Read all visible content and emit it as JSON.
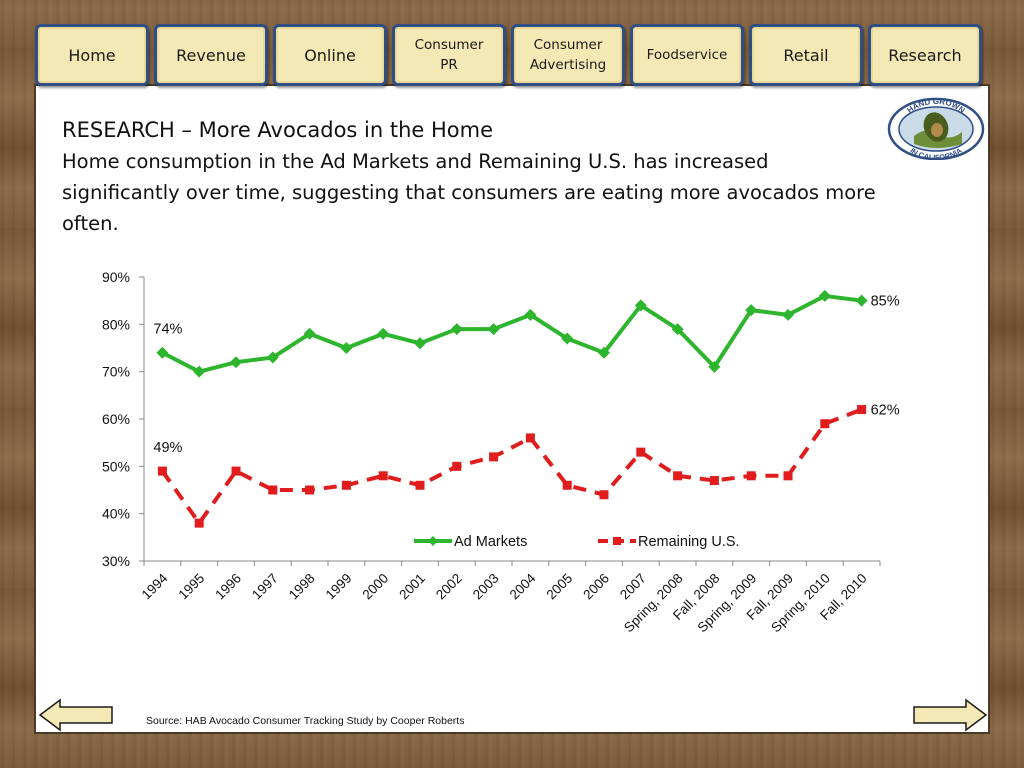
{
  "nav": {
    "tabs": [
      {
        "id": "home",
        "label": "Home"
      },
      {
        "id": "revenue",
        "label": "Revenue"
      },
      {
        "id": "online",
        "label": "Online"
      },
      {
        "id": "consumer-pr",
        "label": "Consumer\nPR"
      },
      {
        "id": "consumer-advertising",
        "label": "Consumer\nAdvertising"
      },
      {
        "id": "foodservice",
        "label": "Foodservice"
      },
      {
        "id": "retail",
        "label": "Retail"
      },
      {
        "id": "research",
        "label": "Research"
      }
    ]
  },
  "header": {
    "title": "RESEARCH –  More Avocados in the Home",
    "description": "Home consumption in the Ad Markets and Remaining U.S. has increased significantly over time, suggesting that consumers are eating more avocados more often."
  },
  "logo": {
    "top_text": "HAND GROWN",
    "bottom_text": "IN CALIFORNIA",
    "colors": {
      "ring": "#2f4e84",
      "fill": "#c9dbe6",
      "avocado": "#4a5d1e",
      "pit": "#b08b4c"
    }
  },
  "chart_data": {
    "type": "line",
    "categories": [
      "1994",
      "1995",
      "1996",
      "1997",
      "1998",
      "1999",
      "2000",
      "2001",
      "2002",
      "2003",
      "2004",
      "2005",
      "2006",
      "2007",
      "Spring, 2008",
      "Fall, 2008",
      "Spring, 2009",
      "Fall, 2009",
      "Spring, 2010",
      "Fall, 2010"
    ],
    "series": [
      {
        "name": "Ad Markets",
        "color": "#2db52d",
        "marker": "diamond",
        "style": "solid",
        "values": [
          74,
          70,
          72,
          73,
          78,
          75,
          78,
          76,
          79,
          79,
          82,
          77,
          74,
          84,
          79,
          71,
          83,
          82,
          86,
          85
        ]
      },
      {
        "name": "Remaining U.S.",
        "color": "#e01c1c",
        "marker": "square",
        "style": "dashed",
        "values": [
          49,
          38,
          49,
          45,
          45,
          46,
          48,
          46,
          50,
          52,
          56,
          46,
          44,
          53,
          48,
          47,
          48,
          48,
          59,
          62
        ]
      }
    ],
    "annotations": [
      {
        "series": 0,
        "index": 0,
        "text": "74%",
        "side": "above"
      },
      {
        "series": 1,
        "index": 0,
        "text": "49%",
        "side": "above"
      },
      {
        "series": 0,
        "index": 19,
        "text": "85%",
        "side": "right"
      },
      {
        "series": 1,
        "index": 19,
        "text": "62%",
        "side": "right"
      }
    ],
    "y_ticks": [
      "30%",
      "40%",
      "50%",
      "60%",
      "70%",
      "80%",
      "90%"
    ],
    "ylim": [
      30,
      90
    ],
    "y_step": 10,
    "legend_position": "bottom-center",
    "grid": false
  },
  "footer": {
    "source": "Source: HAB Avocado Consumer Tracking Study by Cooper Roberts"
  }
}
